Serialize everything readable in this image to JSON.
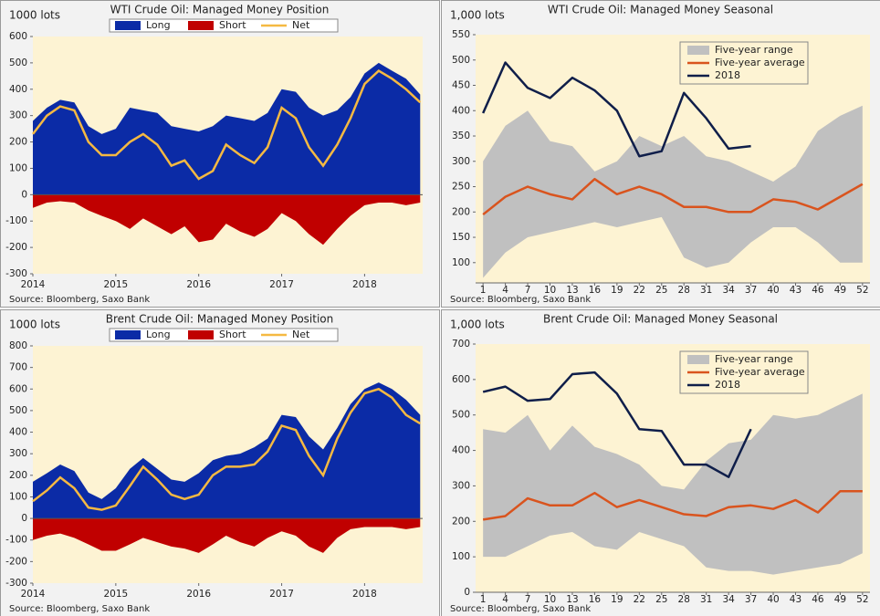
{
  "chart_data": [
    {
      "type": "area",
      "title": "WTI Crude Oil: Managed Money Position",
      "y_label": "1000 lots",
      "source": "Source: Bloomberg, Saxo Bank",
      "x": [
        2014.0,
        2014.17,
        2014.33,
        2014.5,
        2014.67,
        2014.83,
        2015.0,
        2015.17,
        2015.33,
        2015.5,
        2015.67,
        2015.83,
        2016.0,
        2016.17,
        2016.33,
        2016.5,
        2016.67,
        2016.83,
        2017.0,
        2017.17,
        2017.33,
        2017.5,
        2017.67,
        2017.83,
        2018.0,
        2018.17,
        2018.33,
        2018.5,
        2018.67
      ],
      "series": [
        {
          "name": "Long",
          "color": "#0b2ba6",
          "values": [
            280,
            330,
            360,
            350,
            260,
            230,
            250,
            330,
            320,
            310,
            260,
            250,
            240,
            260,
            300,
            290,
            280,
            310,
            400,
            390,
            330,
            300,
            320,
            370,
            460,
            500,
            470,
            440,
            380
          ]
        },
        {
          "name": "Short",
          "color": "#c00000",
          "values": [
            -50,
            -30,
            -25,
            -30,
            -60,
            -80,
            -100,
            -130,
            -90,
            -120,
            -150,
            -120,
            -180,
            -170,
            -110,
            -140,
            -160,
            -130,
            -70,
            -100,
            -150,
            -190,
            -130,
            -80,
            -40,
            -30,
            -30,
            -40,
            -30
          ]
        },
        {
          "name": "Net",
          "color": "#f5b942",
          "values": [
            230,
            300,
            335,
            320,
            200,
            150,
            150,
            200,
            230,
            190,
            110,
            130,
            60,
            90,
            190,
            150,
            120,
            180,
            330,
            290,
            180,
            110,
            190,
            290,
            420,
            470,
            440,
            400,
            350
          ]
        }
      ],
      "xlim": [
        2014,
        2018.7
      ],
      "xticks": [
        2014,
        2015,
        2016,
        2017,
        2018
      ],
      "ylim": [
        -300,
        600
      ],
      "yticks": [
        -300,
        -200,
        -100,
        0,
        100,
        200,
        300,
        400,
        500,
        600
      ]
    },
    {
      "type": "line",
      "title": "WTI Crude Oil: Managed Money Seasonal",
      "y_label": "1,000 lots",
      "source": "Source: Bloomberg, Saxo Bank",
      "x": [
        1,
        4,
        7,
        10,
        13,
        16,
        19,
        22,
        25,
        28,
        31,
        34,
        37,
        40,
        43,
        46,
        49,
        52
      ],
      "series": [
        {
          "name": "Five-year range",
          "color": "#c0c0c0",
          "values": [
            300,
            370,
            400,
            340,
            330,
            280,
            300,
            350,
            330,
            350,
            310,
            300,
            280,
            260,
            290,
            360,
            390,
            410
          ],
          "lower": [
            70,
            120,
            150,
            160,
            170,
            180,
            170,
            180,
            190,
            110,
            90,
            100,
            140,
            170,
            170,
            140,
            100,
            100
          ]
        },
        {
          "name": "Five-year average",
          "color": "#d9541e",
          "values": [
            195,
            230,
            250,
            235,
            225,
            265,
            235,
            250,
            235,
            210,
            210,
            200,
            200,
            225,
            220,
            205,
            230,
            255
          ]
        },
        {
          "name": "2018",
          "color": "#0f1e4a",
          "values": [
            395,
            495,
            445,
            425,
            465,
            440,
            400,
            310,
            320,
            435,
            385,
            325,
            330,
            null,
            null,
            null,
            null,
            null
          ]
        }
      ],
      "xlim": [
        0,
        53
      ],
      "xticks": [
        1,
        4,
        7,
        10,
        13,
        16,
        19,
        22,
        25,
        28,
        31,
        34,
        37,
        40,
        43,
        46,
        49,
        52
      ],
      "ylim": [
        60,
        550
      ],
      "yticks": [
        100,
        150,
        200,
        250,
        300,
        350,
        400,
        450,
        500,
        550
      ]
    },
    {
      "type": "area",
      "title": "Brent Crude Oil: Managed Money Position",
      "y_label": "1000 lots",
      "source": "Source: Bloomberg, Saxo Bank",
      "x": [
        2014.0,
        2014.17,
        2014.33,
        2014.5,
        2014.67,
        2014.83,
        2015.0,
        2015.17,
        2015.33,
        2015.5,
        2015.67,
        2015.83,
        2016.0,
        2016.17,
        2016.33,
        2016.5,
        2016.67,
        2016.83,
        2017.0,
        2017.17,
        2017.33,
        2017.5,
        2017.67,
        2017.83,
        2018.0,
        2018.17,
        2018.33,
        2018.5,
        2018.67
      ],
      "series": [
        {
          "name": "Long",
          "color": "#0b2ba6",
          "values": [
            170,
            210,
            250,
            220,
            120,
            90,
            140,
            230,
            280,
            230,
            180,
            170,
            210,
            270,
            290,
            300,
            330,
            370,
            480,
            470,
            380,
            320,
            420,
            530,
            600,
            630,
            600,
            550,
            480
          ]
        },
        {
          "name": "Short",
          "color": "#c00000",
          "values": [
            -100,
            -80,
            -70,
            -90,
            -120,
            -150,
            -150,
            -120,
            -90,
            -110,
            -130,
            -140,
            -160,
            -120,
            -80,
            -110,
            -130,
            -90,
            -60,
            -80,
            -130,
            -160,
            -90,
            -50,
            -40,
            -40,
            -40,
            -50,
            -40
          ]
        },
        {
          "name": "Net",
          "color": "#f5b942",
          "values": [
            80,
            130,
            190,
            140,
            50,
            40,
            60,
            150,
            240,
            180,
            110,
            90,
            110,
            200,
            240,
            240,
            250,
            310,
            430,
            410,
            290,
            200,
            370,
            490,
            580,
            600,
            560,
            480,
            440
          ]
        }
      ],
      "xlim": [
        2014,
        2018.7
      ],
      "xticks": [
        2014,
        2015,
        2016,
        2017,
        2018
      ],
      "ylim": [
        -300,
        800
      ],
      "yticks": [
        -300,
        -200,
        -100,
        0,
        100,
        200,
        300,
        400,
        500,
        600,
        700,
        800
      ]
    },
    {
      "type": "line",
      "title": "Brent Crude Oil: Managed Money Seasonal",
      "y_label": "1,000 lots",
      "source": "Source: Bloomberg, Saxo Bank",
      "x": [
        1,
        4,
        7,
        10,
        13,
        16,
        19,
        22,
        25,
        28,
        31,
        34,
        37,
        40,
        43,
        46,
        49,
        52
      ],
      "series": [
        {
          "name": "Five-year range",
          "color": "#c0c0c0",
          "values": [
            460,
            450,
            500,
            400,
            470,
            410,
            390,
            360,
            300,
            290,
            370,
            420,
            430,
            500,
            490,
            500,
            530,
            560
          ],
          "lower": [
            100,
            100,
            130,
            160,
            170,
            130,
            120,
            170,
            150,
            130,
            70,
            60,
            60,
            50,
            60,
            70,
            80,
            110
          ]
        },
        {
          "name": "Five-year average",
          "color": "#d9541e",
          "values": [
            205,
            215,
            265,
            245,
            245,
            280,
            240,
            260,
            240,
            220,
            215,
            240,
            245,
            235,
            260,
            225,
            285,
            285
          ]
        },
        {
          "name": "2018",
          "color": "#0f1e4a",
          "values": [
            565,
            580,
            540,
            545,
            615,
            620,
            560,
            460,
            455,
            360,
            360,
            325,
            460,
            null,
            null,
            null,
            null,
            null
          ]
        }
      ],
      "xlim": [
        0,
        53
      ],
      "xticks": [
        1,
        4,
        7,
        10,
        13,
        16,
        19,
        22,
        25,
        28,
        31,
        34,
        37,
        40,
        43,
        46,
        49,
        52
      ],
      "ylim": [
        0,
        700
      ],
      "yticks": [
        0,
        100,
        200,
        300,
        400,
        500,
        600,
        700
      ]
    }
  ]
}
